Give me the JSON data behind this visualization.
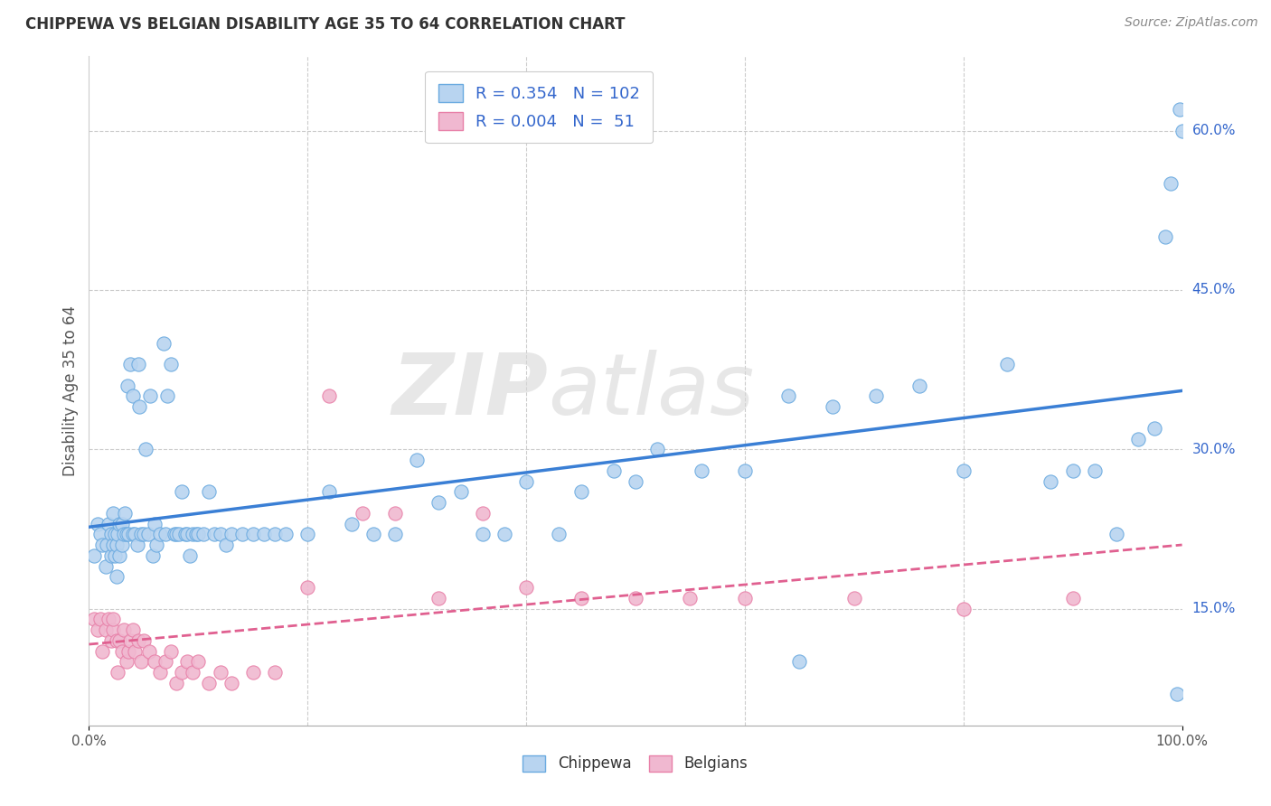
{
  "title": "CHIPPEWA VS BELGIAN DISABILITY AGE 35 TO 64 CORRELATION CHART",
  "source": "Source: ZipAtlas.com",
  "ylabel": "Disability Age 35 to 64",
  "yticks": [
    "15.0%",
    "30.0%",
    "45.0%",
    "60.0%"
  ],
  "ytick_vals": [
    0.15,
    0.3,
    0.45,
    0.6
  ],
  "xlim": [
    0.0,
    1.0
  ],
  "ylim": [
    0.04,
    0.67
  ],
  "chippewa_R": "0.354",
  "chippewa_N": "102",
  "belgians_R": "0.004",
  "belgians_N": " 51",
  "chippewa_color": "#b8d4f0",
  "belgians_color": "#f0b8d0",
  "chippewa_edge_color": "#6aaae0",
  "belgians_edge_color": "#e880a8",
  "chippewa_line_color": "#3a7fd5",
  "belgians_line_color": "#e06090",
  "legend_text_color": "#3366cc",
  "watermark_color": "#d8d8d8",
  "background_color": "#ffffff",
  "grid_color": "#cccccc",
  "chippewa_x": [
    0.005,
    0.008,
    0.01,
    0.012,
    0.015,
    0.016,
    0.018,
    0.02,
    0.02,
    0.022,
    0.022,
    0.024,
    0.024,
    0.025,
    0.025,
    0.026,
    0.028,
    0.028,
    0.03,
    0.03,
    0.032,
    0.033,
    0.034,
    0.035,
    0.036,
    0.038,
    0.04,
    0.04,
    0.042,
    0.044,
    0.045,
    0.046,
    0.048,
    0.05,
    0.052,
    0.054,
    0.056,
    0.058,
    0.06,
    0.062,
    0.065,
    0.068,
    0.07,
    0.072,
    0.075,
    0.078,
    0.08,
    0.082,
    0.085,
    0.088,
    0.09,
    0.092,
    0.095,
    0.098,
    0.1,
    0.105,
    0.11,
    0.115,
    0.12,
    0.125,
    0.13,
    0.14,
    0.15,
    0.16,
    0.17,
    0.18,
    0.2,
    0.22,
    0.24,
    0.26,
    0.28,
    0.3,
    0.32,
    0.34,
    0.36,
    0.38,
    0.4,
    0.43,
    0.45,
    0.48,
    0.5,
    0.52,
    0.56,
    0.6,
    0.64,
    0.68,
    0.72,
    0.76,
    0.8,
    0.84,
    0.88,
    0.9,
    0.92,
    0.94,
    0.96,
    0.975,
    0.985,
    0.99,
    0.995,
    0.998,
    1.0,
    0.65
  ],
  "chippewa_y": [
    0.2,
    0.23,
    0.22,
    0.21,
    0.19,
    0.21,
    0.23,
    0.2,
    0.22,
    0.21,
    0.24,
    0.2,
    0.22,
    0.21,
    0.18,
    0.22,
    0.2,
    0.23,
    0.21,
    0.23,
    0.22,
    0.24,
    0.22,
    0.36,
    0.22,
    0.38,
    0.22,
    0.35,
    0.22,
    0.21,
    0.38,
    0.34,
    0.22,
    0.22,
    0.3,
    0.22,
    0.35,
    0.2,
    0.23,
    0.21,
    0.22,
    0.4,
    0.22,
    0.35,
    0.38,
    0.22,
    0.22,
    0.22,
    0.26,
    0.22,
    0.22,
    0.2,
    0.22,
    0.22,
    0.22,
    0.22,
    0.26,
    0.22,
    0.22,
    0.21,
    0.22,
    0.22,
    0.22,
    0.22,
    0.22,
    0.22,
    0.22,
    0.26,
    0.23,
    0.22,
    0.22,
    0.29,
    0.25,
    0.26,
    0.22,
    0.22,
    0.27,
    0.22,
    0.26,
    0.28,
    0.27,
    0.3,
    0.28,
    0.28,
    0.35,
    0.34,
    0.35,
    0.36,
    0.28,
    0.38,
    0.27,
    0.28,
    0.28,
    0.22,
    0.31,
    0.32,
    0.5,
    0.55,
    0.07,
    0.62,
    0.6,
    0.1
  ],
  "belgians_x": [
    0.005,
    0.008,
    0.01,
    0.012,
    0.015,
    0.018,
    0.02,
    0.022,
    0.022,
    0.025,
    0.026,
    0.028,
    0.03,
    0.032,
    0.034,
    0.036,
    0.038,
    0.04,
    0.042,
    0.045,
    0.048,
    0.05,
    0.055,
    0.06,
    0.065,
    0.07,
    0.075,
    0.08,
    0.085,
    0.09,
    0.095,
    0.1,
    0.11,
    0.12,
    0.13,
    0.15,
    0.17,
    0.2,
    0.22,
    0.25,
    0.28,
    0.32,
    0.36,
    0.4,
    0.45,
    0.5,
    0.55,
    0.6,
    0.7,
    0.8,
    0.9
  ],
  "belgians_y": [
    0.14,
    0.13,
    0.14,
    0.11,
    0.13,
    0.14,
    0.12,
    0.13,
    0.14,
    0.12,
    0.09,
    0.12,
    0.11,
    0.13,
    0.1,
    0.11,
    0.12,
    0.13,
    0.11,
    0.12,
    0.1,
    0.12,
    0.11,
    0.1,
    0.09,
    0.1,
    0.11,
    0.08,
    0.09,
    0.1,
    0.09,
    0.1,
    0.08,
    0.09,
    0.08,
    0.09,
    0.09,
    0.17,
    0.35,
    0.24,
    0.24,
    0.16,
    0.24,
    0.17,
    0.16,
    0.16,
    0.16,
    0.16,
    0.16,
    0.15,
    0.16
  ]
}
